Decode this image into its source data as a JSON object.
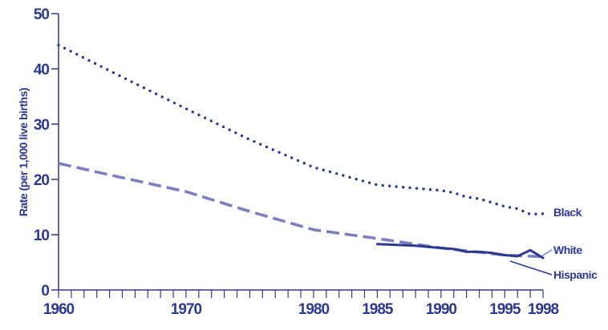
{
  "chart_data": {
    "type": "line",
    "title": "",
    "xlabel": "",
    "ylabel": "Rate (per 1,000 live births)",
    "xlim": [
      1960,
      1998
    ],
    "ylim": [
      0,
      50
    ],
    "x_tick_labels": [
      "1960",
      "1970",
      "1980",
      "1985",
      "1990",
      "1995",
      "1998"
    ],
    "x_tick_values": [
      1960,
      1970,
      1980,
      1985,
      1990,
      1995,
      1998
    ],
    "y_tick_labels": [
      "0",
      "10",
      "20",
      "30",
      "40",
      "50"
    ],
    "y_tick_values": [
      0,
      10,
      20,
      30,
      40,
      50
    ],
    "grid": false,
    "legend": "direct labels at right end of lines",
    "series": [
      {
        "name": "Black",
        "style": "dotted",
        "color": "#2b3990",
        "x": [
          1960,
          1965,
          1970,
          1975,
          1980,
          1985,
          1990,
          1991,
          1992,
          1993,
          1994,
          1995,
          1996,
          1997,
          1998
        ],
        "y": [
          44.3,
          38.5,
          32.8,
          27.2,
          22.2,
          19.0,
          18.0,
          17.6,
          16.8,
          16.5,
          15.8,
          15.1,
          14.7,
          13.7,
          13.8
        ]
      },
      {
        "name": "White",
        "style": "dashed",
        "color": "#7b7fc0",
        "x": [
          1960,
          1965,
          1970,
          1975,
          1980,
          1985,
          1990,
          1995,
          1998
        ],
        "y": [
          22.9,
          20.3,
          17.8,
          14.2,
          10.9,
          9.3,
          7.6,
          6.3,
          6.0
        ]
      },
      {
        "name": "Hispanic",
        "style": "solid",
        "color": "#2b3990",
        "x": [
          1985,
          1986,
          1987,
          1988,
          1989,
          1990,
          1991,
          1992,
          1993,
          1994,
          1995,
          1996,
          1997,
          1998
        ],
        "y": [
          8.3,
          8.2,
          8.1,
          8.0,
          7.8,
          7.6,
          7.4,
          6.9,
          6.9,
          6.7,
          6.3,
          6.1,
          7.2,
          5.8
        ]
      }
    ]
  }
}
